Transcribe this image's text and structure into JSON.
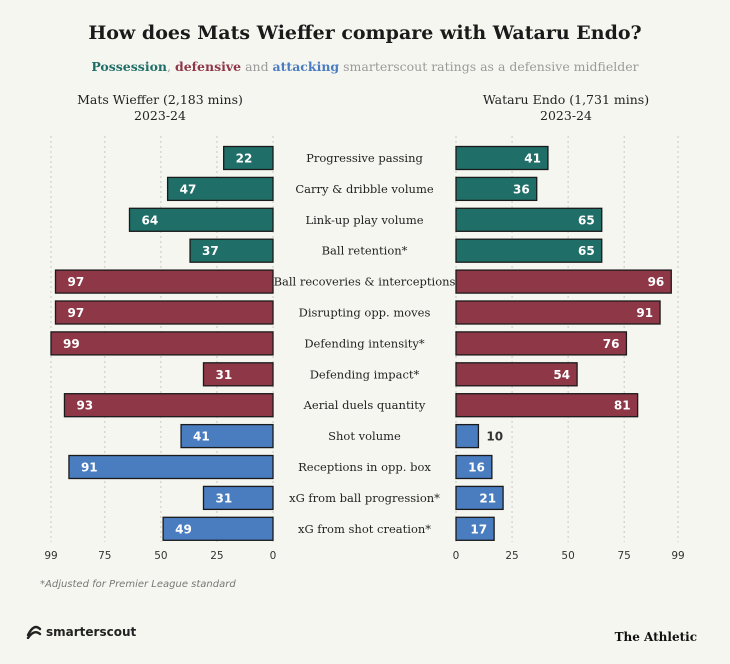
{
  "title": "How does Mats Wieffer compare with Wataru Endo?",
  "subtitle": {
    "possession": "Possession",
    "sep1": ", ",
    "defensive": "defensive",
    "sep2": " and ",
    "attacking": "attacking",
    "rest": " smarterscout ratings as a defensive midfielder"
  },
  "footnote": "*Adjusted for Premier League standard",
  "logo_left": "smarterscout",
  "logo_right": "The Athletic",
  "colors": {
    "possession": "#1f6e68",
    "defensive": "#8e3747",
    "attacking": "#4a7cc0",
    "background": "#f6f6f1"
  },
  "chart_data": {
    "type": "bar",
    "orientation": "horizontal-mirrored",
    "left_player": {
      "name": "Mats Wieffer (2,183 mins)",
      "season": "2023-24",
      "ticks": [
        99,
        75,
        50,
        25,
        0
      ]
    },
    "right_player": {
      "name": "Wataru Endo (1,731 mins)",
      "season": "2023-24",
      "ticks": [
        0,
        25,
        50,
        75,
        99
      ]
    },
    "xlim": [
      0,
      99
    ],
    "grid": true,
    "metrics": [
      {
        "label": "Progressive passing",
        "group": "possession",
        "left": 22,
        "right": 41
      },
      {
        "label": "Carry & dribble volume",
        "group": "possession",
        "left": 47,
        "right": 36
      },
      {
        "label": "Link-up play volume",
        "group": "possession",
        "left": 64,
        "right": 65
      },
      {
        "label": "Ball retention*",
        "group": "possession",
        "left": 37,
        "right": 65
      },
      {
        "label": "Ball recoveries & interceptions",
        "group": "defensive",
        "left": 97,
        "right": 96
      },
      {
        "label": "Disrupting opp. moves",
        "group": "defensive",
        "left": 97,
        "right": 91
      },
      {
        "label": "Defending intensity*",
        "group": "defensive",
        "left": 99,
        "right": 76
      },
      {
        "label": "Defending impact*",
        "group": "defensive",
        "left": 31,
        "right": 54
      },
      {
        "label": "Aerial duels quantity",
        "group": "defensive",
        "left": 93,
        "right": 81
      },
      {
        "label": "Shot volume",
        "group": "attacking",
        "left": 41,
        "right": 10
      },
      {
        "label": "Receptions in opp. box",
        "group": "attacking",
        "left": 91,
        "right": 16
      },
      {
        "label": "xG from ball progression*",
        "group": "attacking",
        "left": 31,
        "right": 21
      },
      {
        "label": "xG from shot creation*",
        "group": "attacking",
        "left": 49,
        "right": 17
      }
    ]
  }
}
